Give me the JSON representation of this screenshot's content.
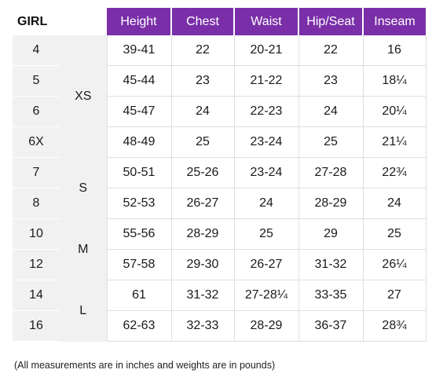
{
  "table": {
    "title": "GIRL",
    "headers": [
      "Height",
      "Chest",
      "Waist",
      "Hip/Seat",
      "Inseam"
    ],
    "rows": [
      {
        "size": "4",
        "values": [
          "39-41",
          "22",
          "20-21",
          "22",
          "16"
        ]
      },
      {
        "size": "5",
        "values": [
          "45-44",
          "23",
          "21-22",
          "23",
          "18¼"
        ]
      },
      {
        "size": "6",
        "values": [
          "45-47",
          "24",
          "22-23",
          "24",
          "20¼"
        ]
      },
      {
        "size": "6X",
        "values": [
          "48-49",
          "25",
          "23-24",
          "25",
          "21¼"
        ]
      },
      {
        "size": "7",
        "values": [
          "50-51",
          "25-26",
          "23-24",
          "27-28",
          "22¾"
        ]
      },
      {
        "size": "8",
        "values": [
          "52-53",
          "26-27",
          "24",
          "28-29",
          "24"
        ]
      },
      {
        "size": "10",
        "values": [
          "55-56",
          "28-29",
          "25",
          "29",
          "25"
        ]
      },
      {
        "size": "12",
        "values": [
          "57-58",
          "29-30",
          "26-27",
          "31-32",
          "26¼"
        ]
      },
      {
        "size": "14",
        "values": [
          "61",
          "31-32",
          "27-28¼",
          "33-35",
          "27"
        ]
      },
      {
        "size": "16",
        "values": [
          "62-63",
          "32-33",
          "28-29",
          "36-37",
          "28¾"
        ]
      }
    ],
    "letter_sizes": [
      {
        "label": "XS",
        "span": 4
      },
      {
        "label": "S",
        "span": 2
      },
      {
        "label": "M",
        "span": 2
      },
      {
        "label": "L",
        "span": 2
      }
    ]
  },
  "footnote": "(All measurements are in inches and weights are in pounds)",
  "colors": {
    "header_bg": "#7a2fa8",
    "header_text": "#ffffff",
    "size_col_bg": "#f1f1f1"
  }
}
